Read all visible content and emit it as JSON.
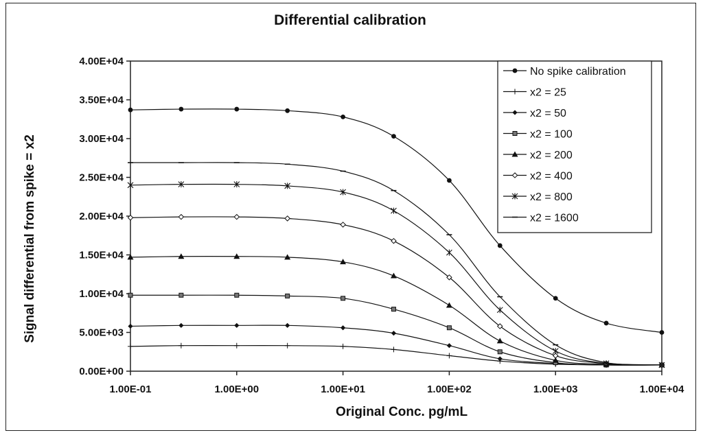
{
  "chart_data": {
    "type": "line",
    "title": "Differential calibration",
    "xlabel": "Original Conc. pg/mL",
    "ylabel": "Signal differential from spike = x2",
    "x_scale": "log",
    "xlim": [
      0.1,
      10000
    ],
    "ylim": [
      0,
      40000
    ],
    "x_tick_labels": [
      "1.00E-01",
      "1.00E+00",
      "1.00E+01",
      "1.00E+02",
      "1.00E+03",
      "1.00E+04"
    ],
    "y_tick_labels": [
      "0.00E+00",
      "5.00E+03",
      "1.00E+04",
      "1.50E+04",
      "2.00E+04",
      "2.50E+04",
      "3.00E+04",
      "3.50E+04",
      "4.00E+04"
    ],
    "grid": false,
    "legend_position": "top-right",
    "x": [
      0.1,
      0.3,
      1,
      3,
      10,
      30,
      100,
      300,
      1000,
      3000,
      10000
    ],
    "series": [
      {
        "name": "No spike calibration",
        "marker": "circle",
        "values": [
          33700,
          33800,
          33800,
          33600,
          32800,
          30300,
          24600,
          16200,
          9400,
          6200,
          5000
        ]
      },
      {
        "name": "x2 = 25",
        "marker": "plus",
        "values": [
          3200,
          3300,
          3300,
          3300,
          3200,
          2800,
          2000,
          1300,
          900,
          800,
          800
        ]
      },
      {
        "name": "x2 = 50",
        "marker": "diamond",
        "values": [
          5800,
          5900,
          5900,
          5900,
          5600,
          4900,
          3300,
          1600,
          1000,
          800,
          800
        ]
      },
      {
        "name": "x2 = 100",
        "marker": "square",
        "values": [
          9800,
          9800,
          9800,
          9700,
          9400,
          8000,
          5600,
          2500,
          1100,
          800,
          800
        ]
      },
      {
        "name": "x2 = 200",
        "marker": "triangle",
        "values": [
          14700,
          14800,
          14800,
          14700,
          14100,
          12300,
          8500,
          3900,
          1400,
          900,
          800
        ]
      },
      {
        "name": "x2 = 400",
        "marker": "open-diamond",
        "values": [
          19800,
          19900,
          19900,
          19700,
          18900,
          16800,
          12100,
          5800,
          2000,
          1000,
          800
        ]
      },
      {
        "name": "x2 = 800",
        "marker": "star",
        "values": [
          24000,
          24100,
          24100,
          23900,
          23100,
          20700,
          15300,
          7900,
          2600,
          1000,
          800
        ]
      },
      {
        "name": "x2 = 1600",
        "marker": "dash",
        "values": [
          26900,
          26900,
          26900,
          26700,
          25800,
          23300,
          17600,
          9600,
          3400,
          1100,
          800
        ]
      }
    ]
  }
}
